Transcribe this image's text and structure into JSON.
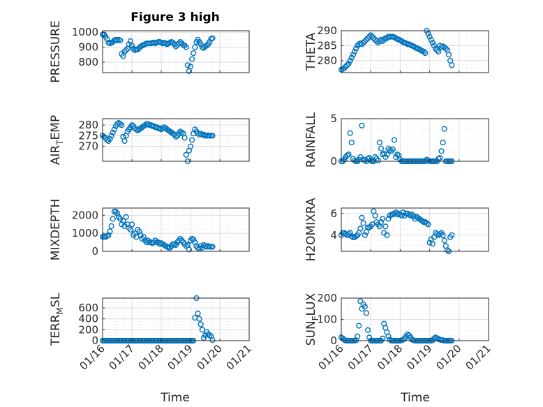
{
  "figure_title": "Figure 3 high",
  "colors": {
    "marker": "#0072BD",
    "grid_major": "#dcdcdc",
    "grid_minor": "#ececec",
    "axis": "#262626"
  },
  "shared_x": {
    "label": "Time",
    "ticks": [
      "01/16",
      "01/17",
      "01/18",
      "01/19",
      "01/20",
      "01/21"
    ],
    "tick_values": [
      0,
      1,
      2,
      3,
      4,
      5
    ],
    "range": [
      0,
      5
    ]
  },
  "chart_data": [
    {
      "type": "scatter",
      "ylabel": "PRESSURE",
      "yticks": [
        800,
        900,
        1000
      ],
      "ylim": [
        730,
        1010
      ],
      "x": [
        0,
        0.05,
        0.1,
        0.15,
        0.2,
        0.25,
        0.3,
        0.35,
        0.4,
        0.45,
        0.5,
        0.55,
        0.6,
        0.65,
        0.7,
        0.75,
        0.8,
        0.85,
        0.9,
        0.95,
        1.0,
        1.05,
        1.1,
        1.15,
        1.2,
        1.25,
        1.3,
        1.35,
        1.4,
        1.45,
        1.5,
        1.55,
        1.6,
        1.65,
        1.7,
        1.75,
        1.8,
        1.85,
        1.9,
        1.95,
        2.0,
        2.05,
        2.1,
        2.15,
        2.2,
        2.25,
        2.3,
        2.35,
        2.4,
        2.45,
        2.5,
        2.55,
        2.6,
        2.65,
        2.7,
        2.75,
        2.8,
        2.85,
        2.9,
        2.95,
        3.0,
        3.05,
        3.1,
        3.15,
        3.2,
        3.25,
        3.3,
        3.35,
        3.4,
        3.45,
        3.5,
        3.55,
        3.6,
        3.65,
        3.7,
        3.75
      ],
      "y": [
        985,
        985,
        970,
        955,
        930,
        925,
        930,
        935,
        945,
        950,
        945,
        950,
        945,
        855,
        840,
        870,
        880,
        890,
        920,
        940,
        910,
        890,
        880,
        885,
        885,
        895,
        905,
        910,
        915,
        920,
        925,
        925,
        925,
        925,
        930,
        930,
        925,
        930,
        935,
        935,
        930,
        925,
        930,
        925,
        920,
        925,
        930,
        935,
        930,
        920,
        905,
        915,
        925,
        935,
        925,
        915,
        910,
        900,
        780,
        740,
        770,
        820,
        860,
        900,
        935,
        950,
        935,
        920,
        900,
        895,
        905,
        910,
        920,
        935,
        955,
        960
      ]
    },
    {
      "type": "scatter",
      "ylabel": "THETA",
      "yticks": [
        280,
        285,
        290
      ],
      "ylim": [
        276,
        290
      ],
      "x": [
        0,
        0.05,
        0.1,
        0.15,
        0.2,
        0.25,
        0.3,
        0.35,
        0.4,
        0.45,
        0.5,
        0.55,
        0.6,
        0.65,
        0.7,
        0.75,
        0.8,
        0.85,
        0.9,
        0.95,
        1.0,
        1.05,
        1.1,
        1.15,
        1.2,
        1.25,
        1.3,
        1.35,
        1.4,
        1.45,
        1.5,
        1.55,
        1.6,
        1.65,
        1.7,
        1.75,
        1.8,
        1.85,
        1.9,
        1.95,
        2.0,
        2.05,
        2.1,
        2.15,
        2.2,
        2.25,
        2.3,
        2.35,
        2.4,
        2.45,
        2.5,
        2.55,
        2.6,
        2.65,
        2.7,
        2.75,
        2.8,
        2.85,
        2.9,
        2.95,
        3.0,
        3.05,
        3.1,
        3.15,
        3.2,
        3.25,
        3.3,
        3.35,
        3.4,
        3.45,
        3.5,
        3.55,
        3.6,
        3.65,
        3.7,
        3.75
      ],
      "y": [
        277,
        277.2,
        277.5,
        278,
        278.5,
        279,
        280,
        281,
        282,
        283,
        284,
        285,
        285.5,
        285.8,
        285.5,
        286,
        286.5,
        287,
        287.5,
        288,
        288.5,
        288,
        287.5,
        287,
        286.5,
        286,
        286.5,
        287,
        286.5,
        287,
        287.5,
        287.5,
        288,
        288,
        288,
        288,
        287.8,
        287.5,
        287.2,
        287,
        286.8,
        286.5,
        286.2,
        286,
        285.8,
        285.5,
        285.5,
        285.2,
        285,
        284.8,
        284.5,
        284.2,
        284,
        283.8,
        283.5,
        283.2,
        283,
        282.5,
        290,
        289,
        288,
        287,
        286,
        285,
        284,
        283.5,
        283,
        285,
        284.5,
        284.8,
        284.5,
        284,
        283.5,
        282,
        280,
        278.5
      ]
    },
    {
      "type": "scatter",
      "ylabel": "AIR_TEMP",
      "yticks": [
        270,
        275,
        280
      ],
      "ylim": [
        263,
        283
      ],
      "x": [
        0,
        0.05,
        0.1,
        0.15,
        0.2,
        0.25,
        0.3,
        0.35,
        0.4,
        0.45,
        0.5,
        0.55,
        0.6,
        0.65,
        0.7,
        0.75,
        0.8,
        0.85,
        0.9,
        0.95,
        1.0,
        1.05,
        1.1,
        1.15,
        1.2,
        1.25,
        1.3,
        1.35,
        1.4,
        1.45,
        1.5,
        1.55,
        1.6,
        1.65,
        1.7,
        1.75,
        1.8,
        1.85,
        1.9,
        1.95,
        2.0,
        2.05,
        2.1,
        2.15,
        2.2,
        2.25,
        2.3,
        2.35,
        2.4,
        2.45,
        2.5,
        2.55,
        2.6,
        2.65,
        2.7,
        2.75,
        2.8,
        2.85,
        2.9,
        2.95,
        3.0,
        3.05,
        3.1,
        3.15,
        3.2,
        3.25,
        3.3,
        3.35,
        3.4,
        3.45,
        3.5,
        3.55,
        3.6,
        3.65,
        3.7,
        3.75
      ],
      "y": [
        275,
        274.5,
        274,
        273,
        272.5,
        273.5,
        275,
        276.5,
        278,
        279.5,
        280.5,
        281,
        280.5,
        280,
        274.5,
        272.5,
        275,
        277,
        278,
        279,
        280,
        279.5,
        278.5,
        278,
        277.5,
        278,
        278.5,
        279,
        279.5,
        280,
        280.5,
        280.5,
        280,
        280,
        279.5,
        279.5,
        279,
        279,
        278.5,
        278.5,
        278,
        278.5,
        279,
        278.5,
        278,
        277.5,
        277,
        276.5,
        276,
        275.5,
        274.5,
        275,
        276,
        277,
        276.5,
        276,
        274,
        266,
        263,
        268,
        270,
        273,
        276,
        278,
        277,
        276,
        275.5,
        276,
        275.5,
        275.5,
        275,
        275,
        275.2,
        275,
        275,
        275
      ]
    },
    {
      "type": "scatter",
      "ylabel": "RAINFALL",
      "yticks": [
        0,
        5
      ],
      "ylim": [
        0,
        5
      ],
      "x": [
        0,
        0.05,
        0.1,
        0.15,
        0.2,
        0.25,
        0.3,
        0.35,
        0.4,
        0.45,
        0.5,
        0.55,
        0.6,
        0.65,
        0.7,
        0.75,
        0.8,
        0.85,
        0.9,
        0.95,
        1.0,
        1.05,
        1.1,
        1.15,
        1.2,
        1.25,
        1.3,
        1.35,
        1.4,
        1.45,
        1.5,
        1.55,
        1.6,
        1.65,
        1.7,
        1.75,
        1.8,
        1.85,
        1.9,
        1.95,
        2.0,
        2.05,
        2.1,
        2.15,
        2.2,
        2.25,
        2.3,
        2.35,
        2.4,
        2.45,
        2.5,
        2.55,
        2.6,
        2.65,
        2.7,
        2.75,
        2.8,
        2.85,
        2.9,
        2.95,
        3.0,
        3.05,
        3.1,
        3.15,
        3.2,
        3.25,
        3.3,
        3.35,
        3.4,
        3.45,
        3.5,
        3.55,
        3.6,
        3.65,
        3.7,
        3.75
      ],
      "y": [
        0,
        0,
        0.2,
        0.5,
        0.7,
        0.8,
        3.3,
        2.2,
        0.3,
        0.1,
        0,
        0,
        0.2,
        0.5,
        4.2,
        0.2,
        0.1,
        0,
        0.3,
        0.4,
        0.1,
        0,
        0,
        0.5,
        0.3,
        0.1,
        2.2,
        1.5,
        0.8,
        0.9,
        0.5,
        0.8,
        1.5,
        1.3,
        1.2,
        1.4,
        2.5,
        0.5,
        0.8,
        0.7,
        0.2,
        0,
        0,
        0,
        0,
        0,
        0,
        0,
        0,
        0,
        0,
        0,
        0,
        0,
        0,
        0,
        0,
        0,
        0.2,
        0.1,
        0,
        0,
        0,
        0,
        0,
        0,
        0.3,
        0.4,
        1.2,
        2.2,
        3.8,
        0,
        0,
        0,
        0,
        0
      ]
    },
    {
      "type": "scatter",
      "ylabel": "MIXDEPTH",
      "yticks": [
        0,
        1000,
        2000
      ],
      "ylim": [
        0,
        2400
      ],
      "x": [
        0,
        0.05,
        0.1,
        0.15,
        0.2,
        0.25,
        0.3,
        0.35,
        0.4,
        0.45,
        0.5,
        0.55,
        0.6,
        0.65,
        0.7,
        0.75,
        0.8,
        0.85,
        0.9,
        0.95,
        1.0,
        1.05,
        1.1,
        1.15,
        1.2,
        1.25,
        1.3,
        1.35,
        1.4,
        1.45,
        1.5,
        1.55,
        1.6,
        1.65,
        1.7,
        1.75,
        1.8,
        1.85,
        1.9,
        1.95,
        2.0,
        2.05,
        2.1,
        2.15,
        2.2,
        2.25,
        2.3,
        2.35,
        2.4,
        2.45,
        2.5,
        2.55,
        2.6,
        2.65,
        2.7,
        2.75,
        2.8,
        2.85,
        2.9,
        2.95,
        3.0,
        3.05,
        3.1,
        3.15,
        3.2,
        3.25,
        3.3,
        3.35,
        3.4,
        3.45,
        3.5,
        3.55,
        3.6,
        3.65,
        3.7,
        3.75
      ],
      "y": [
        800,
        800,
        800,
        850,
        900,
        1100,
        1400,
        1800,
        2200,
        2200,
        2100,
        1900,
        1800,
        1500,
        1700,
        1400,
        1900,
        1500,
        1300,
        1200,
        1500,
        900,
        1000,
        800,
        1200,
        1100,
        900,
        700,
        800,
        600,
        500,
        600,
        500,
        500,
        450,
        500,
        600,
        500,
        500,
        400,
        450,
        400,
        350,
        300,
        250,
        200,
        200,
        300,
        400,
        400,
        350,
        500,
        600,
        700,
        600,
        500,
        400,
        300,
        350,
        100,
        600,
        700,
        650,
        500,
        300,
        200,
        150,
        300,
        200,
        350,
        300,
        250,
        300,
        250,
        250,
        250
      ]
    },
    {
      "type": "scatter",
      "ylabel": "H2OMIXRA",
      "yticks": [
        4,
        6
      ],
      "ylim": [
        2.5,
        6.5
      ],
      "x": [
        0,
        0.05,
        0.1,
        0.15,
        0.2,
        0.25,
        0.3,
        0.35,
        0.4,
        0.45,
        0.5,
        0.55,
        0.6,
        0.65,
        0.7,
        0.75,
        0.8,
        0.85,
        0.9,
        0.95,
        1.0,
        1.05,
        1.1,
        1.15,
        1.2,
        1.25,
        1.3,
        1.35,
        1.4,
        1.45,
        1.5,
        1.55,
        1.6,
        1.65,
        1.7,
        1.75,
        1.8,
        1.85,
        1.9,
        1.95,
        2.0,
        2.05,
        2.1,
        2.15,
        2.2,
        2.25,
        2.3,
        2.35,
        2.4,
        2.45,
        2.5,
        2.55,
        2.6,
        2.65,
        2.7,
        2.75,
        2.8,
        2.85,
        2.9,
        2.95,
        3.0,
        3.05,
        3.1,
        3.15,
        3.2,
        3.25,
        3.3,
        3.35,
        3.4,
        3.45,
        3.5,
        3.55,
        3.6,
        3.65,
        3.7,
        3.75
      ],
      "y": [
        4,
        4.2,
        4.2,
        4.1,
        4,
        4.1,
        4.2,
        3.9,
        3.8,
        3.8,
        3.9,
        4,
        4.2,
        4.6,
        5.6,
        5.1,
        4,
        4.3,
        4.7,
        4.7,
        4.8,
        5,
        6.2,
        5.8,
        5.2,
        5,
        4.8,
        5.2,
        5.5,
        4.2,
        4.8,
        4,
        5.5,
        5.8,
        5.9,
        5.9,
        6,
        6.1,
        5.9,
        6,
        5.9,
        5.8,
        6.1,
        5.8,
        6,
        6,
        5.9,
        5.8,
        5.9,
        5.7,
        5.5,
        5.7,
        5.6,
        5.5,
        5.4,
        5.3,
        5.2,
        5.2,
        5.1,
        5,
        3.3,
        3.6,
        3.2,
        3.8,
        4.2,
        4.1,
        4,
        4.1,
        4.2,
        4,
        3.5,
        3.0,
        2.6,
        2.5,
        3.8,
        4
      ]
    },
    {
      "type": "scatter",
      "ylabel": "TERR_MSL",
      "yticks": [
        0,
        200,
        400,
        600
      ],
      "ylim": [
        0,
        780
      ],
      "x": [
        0,
        0.05,
        0.1,
        0.15,
        0.2,
        0.25,
        0.3,
        0.35,
        0.4,
        0.45,
        0.5,
        0.55,
        0.6,
        0.65,
        0.7,
        0.75,
        0.8,
        0.85,
        0.9,
        0.95,
        1.0,
        1.05,
        1.1,
        1.15,
        1.2,
        1.25,
        1.3,
        1.35,
        1.4,
        1.45,
        1.5,
        1.55,
        1.6,
        1.65,
        1.7,
        1.75,
        1.8,
        1.85,
        1.9,
        1.95,
        2.0,
        2.05,
        2.1,
        2.15,
        2.2,
        2.25,
        2.3,
        2.35,
        2.4,
        2.45,
        2.5,
        2.55,
        2.6,
        2.65,
        2.7,
        2.75,
        2.8,
        2.85,
        2.9,
        2.95,
        3.0,
        3.05,
        3.1,
        3.15,
        3.2,
        3.25,
        3.3,
        3.35,
        3.4,
        3.45,
        3.5,
        3.55,
        3.6,
        3.65,
        3.7,
        3.75
      ],
      "y": [
        0,
        0,
        0,
        0,
        0,
        0,
        0,
        0,
        0,
        0,
        0,
        0,
        0,
        0,
        0,
        0,
        0,
        0,
        0,
        0,
        0,
        0,
        0,
        0,
        0,
        0,
        0,
        0,
        0,
        0,
        0,
        0,
        0,
        0,
        0,
        0,
        0,
        0,
        0,
        0,
        0,
        0,
        0,
        0,
        0,
        0,
        0,
        0,
        0,
        0,
        0,
        0,
        0,
        0,
        0,
        0,
        0,
        0,
        0,
        0,
        0,
        0,
        0,
        420,
        780,
        500,
        400,
        300,
        200,
        50,
        100,
        160,
        120,
        100,
        80,
        10
      ]
    },
    {
      "type": "scatter",
      "ylabel": "SUN_FLUX",
      "yticks": [
        0,
        100,
        200
      ],
      "ylim": [
        0,
        200
      ],
      "x": [
        0,
        0.05,
        0.1,
        0.15,
        0.2,
        0.25,
        0.3,
        0.35,
        0.4,
        0.45,
        0.5,
        0.55,
        0.6,
        0.65,
        0.7,
        0.75,
        0.8,
        0.85,
        0.9,
        0.95,
        1.0,
        1.05,
        1.1,
        1.15,
        1.2,
        1.25,
        1.3,
        1.35,
        1.4,
        1.45,
        1.5,
        1.55,
        1.6,
        1.65,
        1.7,
        1.75,
        1.8,
        1.85,
        1.9,
        1.95,
        2.0,
        2.05,
        2.1,
        2.15,
        2.2,
        2.25,
        2.3,
        2.35,
        2.4,
        2.45,
        2.5,
        2.55,
        2.6,
        2.65,
        2.7,
        2.75,
        2.8,
        2.85,
        2.9,
        2.95,
        3.0,
        3.05,
        3.1,
        3.15,
        3.2,
        3.25,
        3.3,
        3.35,
        3.4,
        3.45,
        3.5,
        3.55,
        3.6,
        3.65,
        3.7,
        3.75
      ],
      "y": [
        15,
        10,
        5,
        0,
        0,
        0,
        0,
        0,
        0,
        0,
        2,
        20,
        70,
        185,
        150,
        170,
        160,
        130,
        50,
        15,
        0,
        0,
        0,
        0,
        0,
        0,
        0,
        0,
        10,
        80,
        60,
        40,
        20,
        5,
        0,
        0,
        0,
        0,
        0,
        0,
        0,
        2,
        5,
        10,
        20,
        30,
        25,
        15,
        5,
        2,
        0,
        0,
        0,
        0,
        0,
        0,
        0,
        0,
        0,
        0,
        0,
        0,
        2,
        10,
        15,
        12,
        8,
        5,
        3,
        2,
        0,
        0,
        0,
        0,
        0,
        0
      ]
    }
  ]
}
